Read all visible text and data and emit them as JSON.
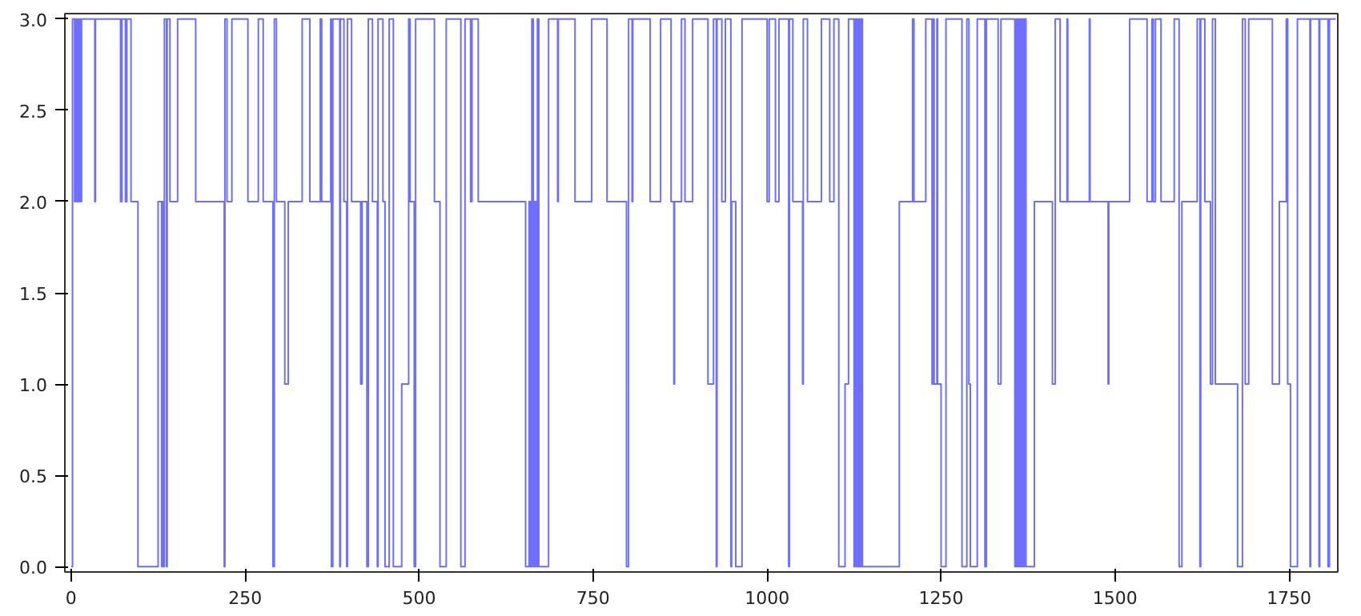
{
  "chart_data": {
    "type": "step",
    "x": [
      0,
      2,
      5,
      7,
      9,
      11,
      13,
      15,
      34,
      35,
      71,
      73,
      78,
      80,
      86,
      96,
      125,
      130,
      131,
      133,
      134,
      137,
      138,
      142,
      153,
      179,
      220,
      221,
      224,
      231,
      254,
      269,
      276,
      290,
      292,
      295,
      307,
      312,
      332,
      343,
      358,
      360,
      373,
      374,
      376,
      386,
      387,
      392,
      396,
      397,
      403,
      416,
      418,
      425,
      427,
      433,
      440,
      441,
      448,
      451,
      457,
      463,
      475,
      485,
      487,
      493,
      495,
      522,
      530,
      539,
      560,
      566,
      574,
      576,
      585,
      653,
      658,
      660,
      662,
      664,
      666,
      668,
      670,
      672,
      686,
      699,
      700,
      724,
      748,
      770,
      798,
      801,
      806,
      807,
      832,
      847,
      862,
      866,
      867,
      877,
      882,
      893,
      915,
      923,
      927,
      928,
      935,
      940,
      948,
      949,
      955,
      964,
      1000,
      1003,
      1012,
      1017,
      1031,
      1032,
      1037,
      1051,
      1052,
      1058,
      1078,
      1090,
      1096,
      1103,
      1112,
      1117,
      1125,
      1127,
      1129,
      1131,
      1133,
      1135,
      1137,
      1190,
      1209,
      1211,
      1228,
      1237,
      1239,
      1240,
      1244,
      1245,
      1250,
      1257,
      1280,
      1287,
      1290,
      1292,
      1302,
      1313,
      1315,
      1332,
      1336,
      1356,
      1358,
      1360,
      1362,
      1364,
      1366,
      1368,
      1370,
      1372,
      1384,
      1410,
      1414,
      1421,
      1431,
      1432,
      1463,
      1464,
      1490,
      1491,
      1521,
      1546,
      1553,
      1555,
      1558,
      1561,
      1566,
      1585,
      1592,
      1596,
      1618,
      1622,
      1623,
      1629,
      1637,
      1640,
      1644,
      1676,
      1683,
      1687,
      1692,
      1726,
      1736,
      1746,
      1748,
      1752,
      1762,
      1780,
      1781,
      1793,
      1794,
      1806,
      1808,
      1817
    ],
    "series": [
      {
        "color": "#6f6fff",
        "values": [
          0,
          3,
          2,
          3,
          2,
          3,
          2,
          3,
          2,
          3,
          2,
          3,
          2,
          3,
          2,
          0,
          2,
          0,
          2,
          0,
          3,
          0,
          3,
          2,
          3,
          2,
          0,
          3,
          2,
          3,
          2,
          3,
          2,
          0,
          3,
          2,
          1,
          2,
          3,
          2,
          3,
          2,
          3,
          0,
          3,
          0,
          3,
          2,
          0,
          3,
          2,
          1,
          2,
          0,
          3,
          2,
          0,
          3,
          2,
          0,
          3,
          0,
          1,
          3,
          2,
          0,
          3,
          2,
          0,
          3,
          0,
          3,
          2,
          3,
          2,
          0,
          2,
          0,
          3,
          0,
          2,
          0,
          3,
          0,
          3,
          2,
          3,
          2,
          3,
          2,
          0,
          3,
          2,
          3,
          2,
          3,
          2,
          1,
          2,
          3,
          2,
          3,
          1,
          3,
          0,
          3,
          2,
          3,
          0,
          2,
          0,
          3,
          2,
          3,
          2,
          3,
          0,
          3,
          2,
          1,
          3,
          2,
          3,
          2,
          3,
          0,
          1,
          3,
          0,
          3,
          0,
          3,
          0,
          3,
          0,
          2,
          3,
          2,
          3,
          1,
          3,
          1,
          3,
          1,
          0,
          3,
          0,
          3,
          1,
          0,
          3,
          0,
          3,
          1,
          3,
          0,
          3,
          0,
          3,
          0,
          3,
          0,
          3,
          0,
          2,
          1,
          3,
          2,
          3,
          2,
          3,
          2,
          1,
          2,
          3,
          2,
          3,
          2,
          3,
          3,
          2,
          3,
          0,
          2,
          3,
          0,
          3,
          2,
          1,
          3,
          1,
          0,
          3,
          1,
          3,
          1,
          2,
          3,
          1,
          0,
          3,
          0,
          3,
          0,
          3,
          0,
          3,
          3
        ]
      }
    ],
    "xlim": [
      -9,
      1820
    ],
    "ylim": [
      -0.03,
      3.03
    ],
    "xticks": [
      0,
      250,
      500,
      750,
      1000,
      1250,
      1500,
      1750
    ],
    "yticks": [
      {
        "value": 0,
        "label": "0.0"
      },
      {
        "value": 0.5,
        "label": "0.5"
      },
      {
        "value": 1,
        "label": "1.0"
      },
      {
        "value": 1.5,
        "label": "1.5"
      },
      {
        "value": 2,
        "label": "2.0"
      },
      {
        "value": 2.5,
        "label": "2.5"
      },
      {
        "value": 3,
        "label": "3.0"
      }
    ],
    "grid": false
  }
}
